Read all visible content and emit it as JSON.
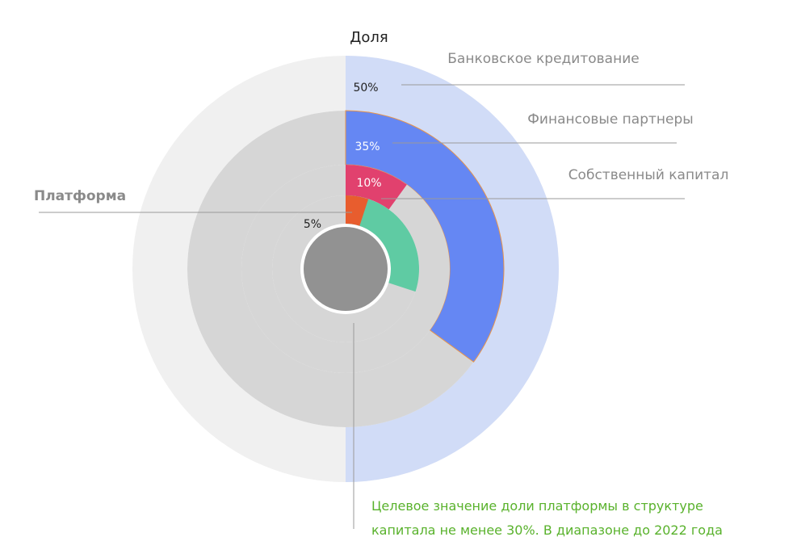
{
  "chart_data": {
    "type": "pie",
    "subtype": "concentric-rings",
    "title": "Доля",
    "series": [
      {
        "name": "Банковское кредитование",
        "value": 50,
        "label": "50%",
        "color": "#d1dcf7",
        "remainder_color": "#f0f0f0"
      },
      {
        "name": "Финансовые партнеры",
        "value": 35,
        "label": "35%",
        "color": "#6587f3",
        "remainder_color": "#d6d6d6"
      },
      {
        "name": "Собственный капитал",
        "value": 10,
        "label": "10%",
        "color": "#e1416e",
        "remainder_color": "#d6d6d6"
      },
      {
        "name": "Платформа",
        "value": 5,
        "label": "5%",
        "color": "#e85d2e",
        "remainder_color": "#d6d6d6",
        "target_value": 30,
        "target_color": "#5fcba3"
      }
    ],
    "center_color": "#929292",
    "annotation": {
      "lines": [
        "Целевое значение доли платформы в структуре",
        "капитала не менее 30%. В диапазоне до 2022 года"
      ],
      "color": "#59b22c"
    }
  }
}
